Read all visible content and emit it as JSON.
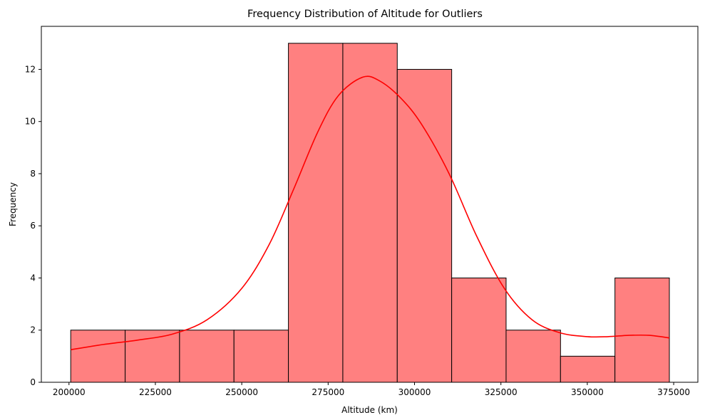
{
  "chart_data": {
    "type": "bar",
    "title": "Frequency Distribution of Altitude for Outliers",
    "xlabel": "Altitude (km)",
    "ylabel": "Frequency",
    "bin_edges": [
      200500,
      216250,
      232000,
      247750,
      263500,
      279250,
      295000,
      310750,
      326500,
      342250,
      358000,
      373750
    ],
    "values": [
      2,
      2,
      2,
      2,
      13,
      13,
      12,
      4,
      2,
      1,
      4
    ],
    "xlim": [
      192000,
      382000
    ],
    "ylim": [
      0,
      13.65
    ],
    "xticks": [
      200000,
      225000,
      250000,
      275000,
      300000,
      325000,
      350000,
      375000
    ],
    "yticks": [
      0,
      2,
      4,
      6,
      8,
      10,
      12
    ],
    "bar_color": "#ff8080",
    "bar_edge_color": "#000000",
    "kde": {
      "color": "#ff0000",
      "x": [
        200500,
        210000,
        220000,
        230000,
        240000,
        250000,
        258000,
        265000,
        272000,
        278000,
        285000,
        290000,
        296000,
        302000,
        310000,
        318000,
        326000,
        334000,
        342000,
        350000,
        356000,
        362000,
        368000,
        373750
      ],
      "y": [
        1.25,
        1.45,
        1.62,
        1.85,
        2.4,
        3.6,
        5.3,
        7.4,
        9.6,
        11.0,
        11.7,
        11.55,
        10.9,
        9.9,
        8.0,
        5.6,
        3.6,
        2.4,
        1.9,
        1.75,
        1.75,
        1.8,
        1.8,
        1.7
      ]
    }
  }
}
